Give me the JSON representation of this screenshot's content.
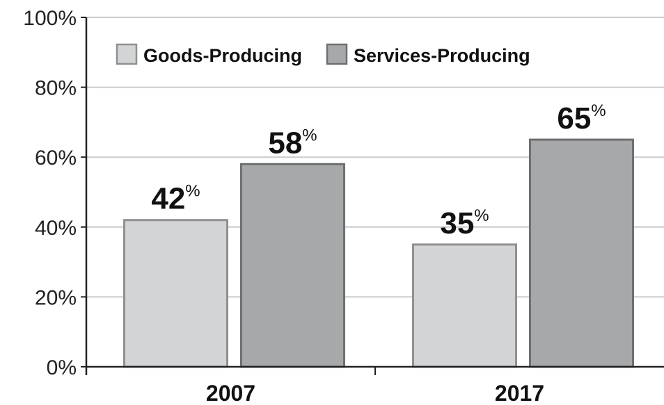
{
  "chart_data": {
    "type": "bar",
    "categories": [
      "2007",
      "2017"
    ],
    "series": [
      {
        "name": "Goods-Producing",
        "values": [
          42,
          35
        ],
        "labels": [
          "42",
          "35"
        ],
        "color": "#d3d4d5",
        "stroke": "#8f9092"
      },
      {
        "name": "Services-Producing",
        "values": [
          58,
          65
        ],
        "labels": [
          "58",
          "65"
        ],
        "color": "#a7a8aa",
        "stroke": "#6e6f71"
      }
    ],
    "value_suffix": "%",
    "y_ticks": [
      "0%",
      "20%",
      "40%",
      "60%",
      "80%",
      "100%"
    ],
    "ylim": [
      0,
      100
    ],
    "grid": true,
    "legend_position": "top-left"
  }
}
